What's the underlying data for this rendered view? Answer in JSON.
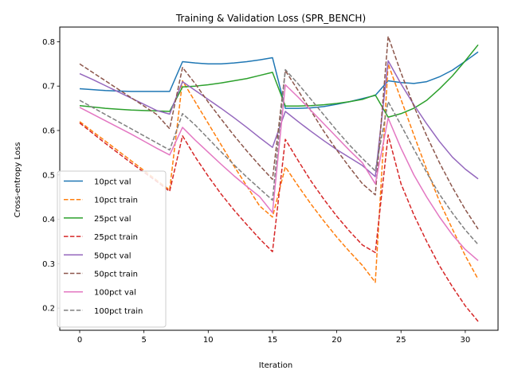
{
  "chart_data": {
    "type": "line",
    "title": "Training & Validation Loss (SPR_BENCH)",
    "xlabel": "Iteration",
    "ylabel": "Cross-entropy Loss",
    "xlim": [
      -1.55,
      32.55
    ],
    "ylim": [
      0.15,
      0.833
    ],
    "xticks": [
      0,
      5,
      10,
      15,
      20,
      25,
      30
    ],
    "yticks": [
      0.2,
      0.3,
      0.4,
      0.5,
      0.6,
      0.7,
      0.8
    ],
    "grid": false,
    "legend_position": "lower-left",
    "x": [
      0,
      1,
      2,
      3,
      4,
      5,
      6,
      7,
      8,
      9,
      10,
      11,
      12,
      13,
      14,
      15,
      16,
      17,
      18,
      19,
      20,
      21,
      22,
      23,
      24,
      25,
      26,
      27,
      28,
      29,
      30,
      31
    ],
    "series": [
      {
        "name": "10pct val",
        "color": "#1f77b4",
        "dash": "solid",
        "values": [
          0.694,
          0.692,
          0.69,
          0.689,
          0.688,
          0.688,
          0.688,
          0.688,
          0.755,
          0.752,
          0.75,
          0.75,
          0.752,
          0.755,
          0.759,
          0.764,
          0.65,
          0.65,
          0.651,
          0.654,
          0.659,
          0.665,
          0.672,
          0.679,
          0.712,
          0.708,
          0.706,
          0.71,
          0.721,
          0.736,
          0.756,
          0.777
        ]
      },
      {
        "name": "10pct train",
        "color": "#ff7f0e",
        "dash": "dashed",
        "values": [
          0.62,
          0.598,
          0.576,
          0.554,
          0.532,
          0.51,
          0.488,
          0.466,
          0.712,
          0.664,
          0.616,
          0.568,
          0.52,
          0.475,
          0.43,
          0.405,
          0.518,
          0.475,
          0.434,
          0.396,
          0.36,
          0.327,
          0.296,
          0.258,
          0.75,
          0.67,
          0.59,
          0.512,
          0.44,
          0.378,
          0.318,
          0.265
        ]
      },
      {
        "name": "25pct val",
        "color": "#2ca02c",
        "dash": "solid",
        "values": [
          0.656,
          0.653,
          0.65,
          0.648,
          0.646,
          0.645,
          0.644,
          0.643,
          0.698,
          0.7,
          0.703,
          0.707,
          0.712,
          0.717,
          0.724,
          0.731,
          0.655,
          0.655,
          0.656,
          0.658,
          0.661,
          0.665,
          0.67,
          0.68,
          0.63,
          0.638,
          0.65,
          0.668,
          0.694,
          0.723,
          0.757,
          0.793
        ]
      },
      {
        "name": "25pct train",
        "color": "#d62728",
        "dash": "dashed",
        "values": [
          0.617,
          0.594,
          0.571,
          0.549,
          0.527,
          0.506,
          0.485,
          0.463,
          0.588,
          0.54,
          0.497,
          0.457,
          0.421,
          0.388,
          0.356,
          0.327,
          0.58,
          0.532,
          0.486,
          0.445,
          0.407,
          0.373,
          0.342,
          0.325,
          0.59,
          0.48,
          0.41,
          0.35,
          0.295,
          0.248,
          0.205,
          0.17
        ]
      },
      {
        "name": "50pct val",
        "color": "#9467bd",
        "dash": "solid",
        "values": [
          0.728,
          0.715,
          0.701,
          0.687,
          0.673,
          0.659,
          0.645,
          0.637,
          0.71,
          0.69,
          0.67,
          0.65,
          0.629,
          0.607,
          0.584,
          0.562,
          0.643,
          0.62,
          0.598,
          0.577,
          0.557,
          0.539,
          0.521,
          0.496,
          0.757,
          0.705,
          0.658,
          0.615,
          0.575,
          0.54,
          0.513,
          0.491
        ]
      },
      {
        "name": "50pct train",
        "color": "#8c564b",
        "dash": "dashed",
        "values": [
          0.75,
          0.731,
          0.712,
          0.693,
          0.674,
          0.655,
          0.636,
          0.604,
          0.742,
          0.705,
          0.664,
          0.626,
          0.589,
          0.554,
          0.521,
          0.49,
          0.735,
          0.69,
          0.644,
          0.598,
          0.556,
          0.517,
          0.48,
          0.455,
          0.812,
          0.73,
          0.655,
          0.588,
          0.527,
          0.472,
          0.422,
          0.378
        ]
      },
      {
        "name": "100pct val",
        "color": "#e377c2",
        "dash": "solid",
        "values": [
          0.652,
          0.637,
          0.622,
          0.607,
          0.592,
          0.576,
          0.56,
          0.545,
          0.607,
          0.578,
          0.551,
          0.524,
          0.498,
          0.474,
          0.451,
          0.415,
          0.703,
          0.675,
          0.645,
          0.615,
          0.585,
          0.555,
          0.527,
          0.48,
          0.628,
          0.56,
          0.5,
          0.45,
          0.405,
          0.365,
          0.332,
          0.307
        ]
      },
      {
        "name": "100pct train",
        "color": "#7f7f7f",
        "dash": "dashed",
        "values": [
          0.668,
          0.652,
          0.636,
          0.62,
          0.604,
          0.588,
          0.572,
          0.556,
          0.638,
          0.612,
          0.582,
          0.552,
          0.523,
          0.495,
          0.469,
          0.443,
          0.737,
          0.705,
          0.67,
          0.635,
          0.6,
          0.567,
          0.537,
          0.509,
          0.665,
          0.612,
          0.558,
          0.505,
          0.456,
          0.414,
          0.376,
          0.343
        ]
      }
    ]
  }
}
